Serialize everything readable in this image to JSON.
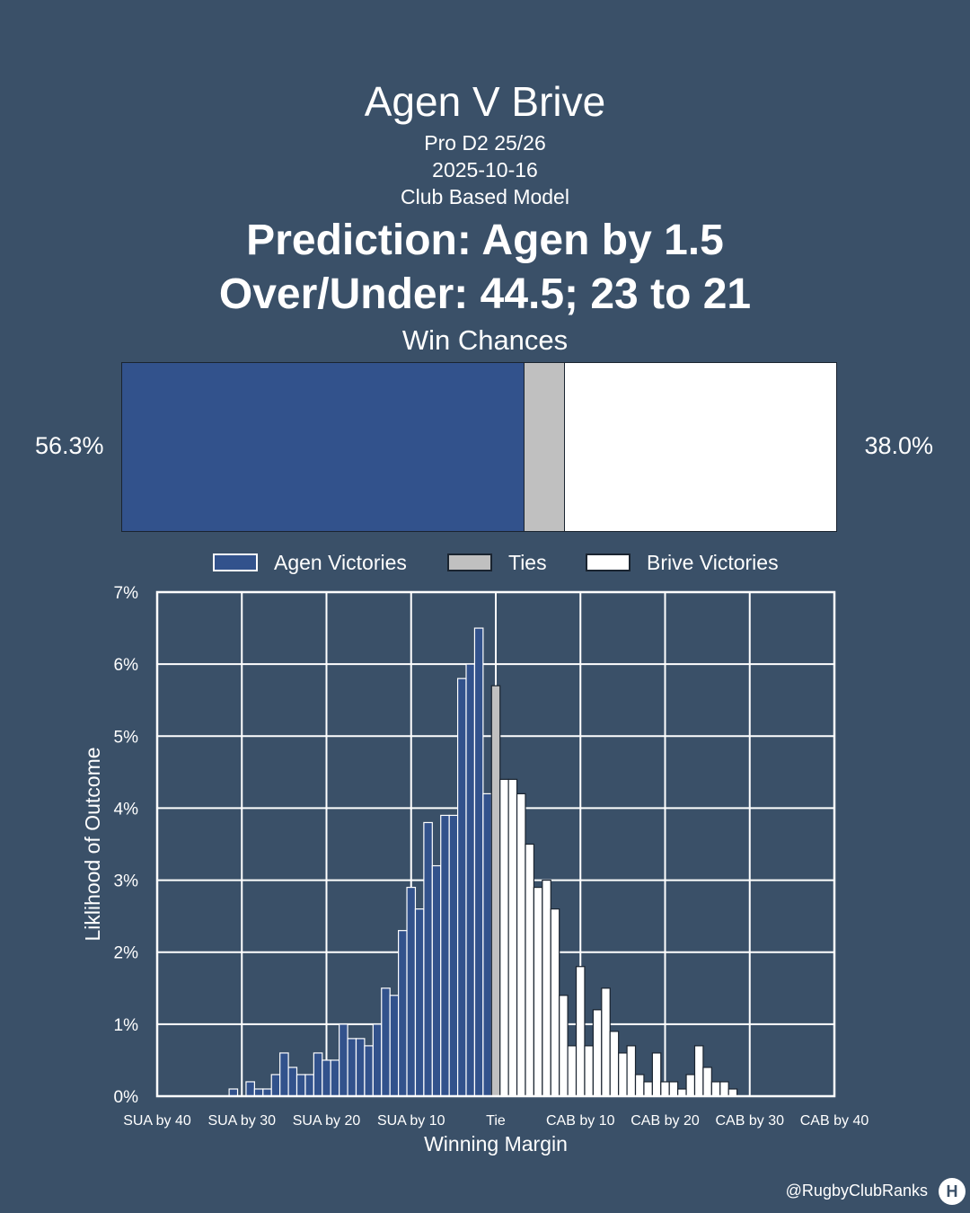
{
  "header": {
    "title": "Agen V Brive",
    "competition": "Pro D2 25/26",
    "date": "2025-10-16",
    "model": "Club Based Model",
    "prediction": "Prediction: Agen by 1.5",
    "over_under": "Over/Under: 44.5; 23 to 21",
    "win_chances_label": "Win Chances"
  },
  "win_chances": {
    "home_label": "56.3%",
    "away_label": "38.0%",
    "home": 56.3,
    "tie": 5.7,
    "away": 38.0
  },
  "colors": {
    "background": "#3a5068",
    "home": "#32528c",
    "tie": "#c0c0c0",
    "away": "#ffffff"
  },
  "legend": {
    "home": "Agen Victories",
    "tie": "Ties",
    "away": "Brive Victories"
  },
  "chart_data": {
    "type": "bar",
    "xlabel": "Winning Margin",
    "ylabel": "Liklihood of Outcome",
    "xlim": [
      -40,
      40
    ],
    "ylim": [
      0,
      7
    ],
    "x_ticks": [
      {
        "value": -40,
        "label": "SUA by 40"
      },
      {
        "value": -30,
        "label": "SUA by 30"
      },
      {
        "value": -20,
        "label": "SUA by 20"
      },
      {
        "value": -10,
        "label": "SUA by 10"
      },
      {
        "value": 0,
        "label": "Tie"
      },
      {
        "value": 10,
        "label": "CAB by 10"
      },
      {
        "value": 20,
        "label": "CAB by 20"
      },
      {
        "value": 30,
        "label": "CAB by 30"
      },
      {
        "value": 40,
        "label": "CAB by 40"
      }
    ],
    "y_ticks": [
      {
        "value": 0,
        "label": "0%"
      },
      {
        "value": 1,
        "label": "1%"
      },
      {
        "value": 2,
        "label": "2%"
      },
      {
        "value": 3,
        "label": "3%"
      },
      {
        "value": 4,
        "label": "4%"
      },
      {
        "value": 5,
        "label": "5%"
      },
      {
        "value": 6,
        "label": "6%"
      },
      {
        "value": 7,
        "label": "7%"
      }
    ],
    "grid": true,
    "series": [
      {
        "name": "Agen Victories",
        "x": [
          -31,
          -29,
          -28,
          -27,
          -26,
          -25,
          -24,
          -23,
          -22,
          -21,
          -20,
          -19,
          -18,
          -17,
          -16,
          -15,
          -14,
          -13,
          -12,
          -11,
          -10,
          -9,
          -8,
          -7,
          -6,
          -5,
          -4,
          -3,
          -2,
          -1
        ],
        "values": [
          0.1,
          0.2,
          0.1,
          0.1,
          0.3,
          0.6,
          0.4,
          0.3,
          0.3,
          0.6,
          0.5,
          0.5,
          1.0,
          0.8,
          0.8,
          0.7,
          1.0,
          1.5,
          1.4,
          2.3,
          2.9,
          2.6,
          3.8,
          3.2,
          3.9,
          3.9,
          5.8,
          6.0,
          6.5,
          4.2
        ]
      },
      {
        "name": "Ties",
        "x": [
          0
        ],
        "values": [
          5.7
        ]
      },
      {
        "name": "Brive Victories",
        "x": [
          1,
          2,
          3,
          4,
          5,
          6,
          7,
          8,
          9,
          10,
          11,
          12,
          13,
          14,
          15,
          16,
          17,
          18,
          19,
          20,
          21,
          22,
          23,
          24,
          25,
          26,
          27,
          28,
          29
        ],
        "values": [
          4.4,
          4.4,
          4.2,
          3.5,
          2.9,
          3.0,
          2.6,
          1.4,
          0.7,
          1.8,
          0.7,
          1.2,
          1.5,
          0.9,
          0.6,
          0.7,
          0.3,
          0.2,
          0.6,
          0.2,
          0.2,
          0.1,
          0.3,
          0.7,
          0.4,
          0.2,
          0.2,
          0.1,
          0.0
        ]
      }
    ]
  },
  "footer": {
    "handle": "@RugbyClubRanks",
    "logo_glyph": "H"
  }
}
